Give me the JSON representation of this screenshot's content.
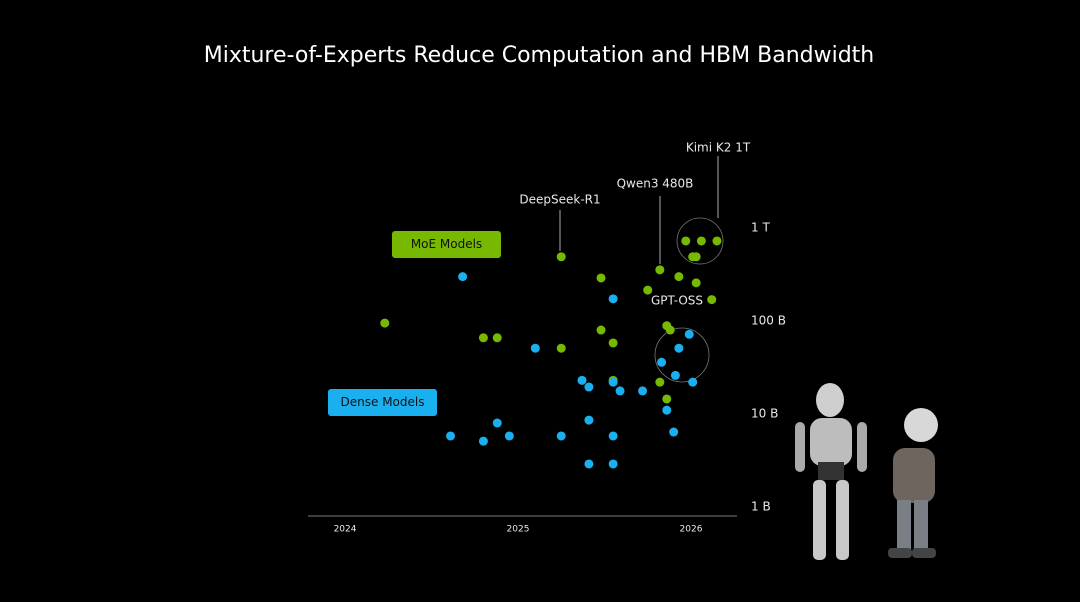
{
  "chart_data": {
    "type": "scatter",
    "title": "Mixture-of-Experts Reduce Computation and HBM Bandwidth",
    "log_scale": true,
    "xlim": [
      2023.786,
      2026.266
    ],
    "xticks": [
      2024,
      2025,
      2026
    ],
    "ylim": [
      0.8,
      10000
    ],
    "yticks": [
      {
        "value": 1,
        "label": "1 B"
      },
      {
        "value": 10,
        "label": "10 B"
      },
      {
        "value": 100,
        "label": "100 B"
      },
      {
        "value": 1000,
        "label": "1 T"
      }
    ],
    "series": [
      {
        "name": "MoE Models",
        "color": "#76b900",
        "x": [
          2024.23,
          2024.8,
          2024.88,
          2025.25,
          2025.25,
          2025.48,
          2025.48,
          2025.55,
          2025.55,
          2025.75,
          2025.82,
          2025.82,
          2025.86,
          2025.88,
          2025.86,
          2025.93,
          2025.97,
          2026.03,
          2026.06,
          2026.15,
          2026.01,
          2026.03,
          2026.12
        ],
        "values": [
          95,
          66,
          66,
          490,
          51,
          290,
          80,
          58,
          23,
          215,
          355,
          22,
          89,
          80,
          14.5,
          300,
          725,
          257,
          725,
          725,
          490,
          490,
          170
        ]
      },
      {
        "name": "Dense Models",
        "color": "#1ab0f0",
        "x": [
          2024.68,
          2024.61,
          2024.8,
          2024.88,
          2024.95,
          2025.1,
          2025.25,
          2025.37,
          2025.41,
          2025.41,
          2025.41,
          2025.55,
          2025.55,
          2025.59,
          2025.55,
          2025.55,
          2025.72,
          2025.83,
          2025.86,
          2025.9,
          2025.91,
          2025.93,
          2025.99,
          2026.01
        ],
        "values": [
          300,
          5.8,
          5.1,
          8,
          5.8,
          51,
          5.8,
          23,
          19.5,
          8.6,
          2.9,
          173,
          22,
          17.7,
          5.8,
          2.9,
          17.7,
          36,
          11,
          6.4,
          26,
          51,
          72,
          22
        ]
      }
    ],
    "annotations": [
      "Kimi K2 1T",
      "Qwen3 480B",
      "DeepSeek-R1",
      "GPT-OSS"
    ]
  }
}
